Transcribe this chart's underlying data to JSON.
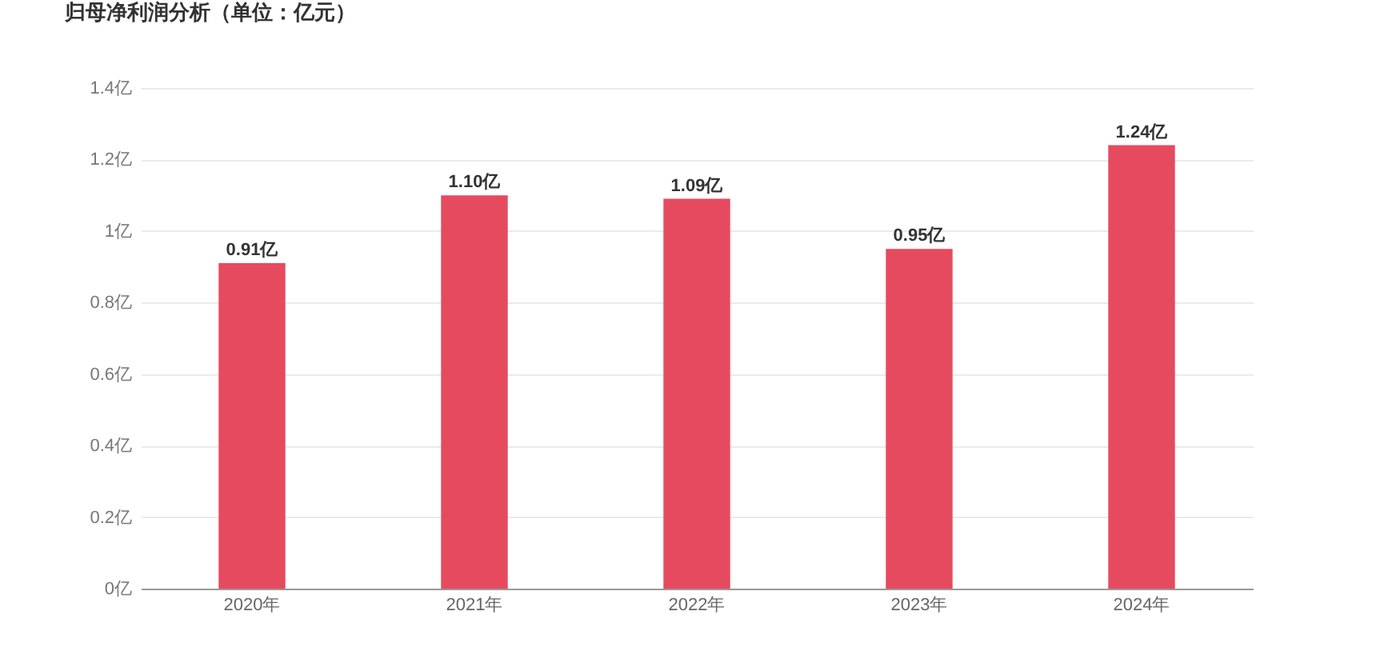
{
  "chart_data": {
    "type": "bar",
    "title": "归母净利润分析（单位：亿元）",
    "categories": [
      "2020年",
      "2021年",
      "2022年",
      "2023年",
      "2024年"
    ],
    "values": [
      0.91,
      1.1,
      1.09,
      0.95,
      1.24
    ],
    "value_labels": [
      "0.91亿",
      "1.10亿",
      "1.09亿",
      "0.95亿",
      "1.24亿"
    ],
    "color": "#e64a5f",
    "ylim": [
      0,
      1.4
    ],
    "yticks": [
      {
        "value": 0,
        "label": "0亿"
      },
      {
        "value": 0.2,
        "label": "0.2亿"
      },
      {
        "value": 0.4,
        "label": "0.4亿"
      },
      {
        "value": 0.6,
        "label": "0.6亿"
      },
      {
        "value": 0.8,
        "label": "0.8亿"
      },
      {
        "value": 1,
        "label": "1亿"
      },
      {
        "value": 1.2,
        "label": "1.2亿"
      },
      {
        "value": 1.4,
        "label": "1.4亿"
      }
    ],
    "grid": "y"
  }
}
